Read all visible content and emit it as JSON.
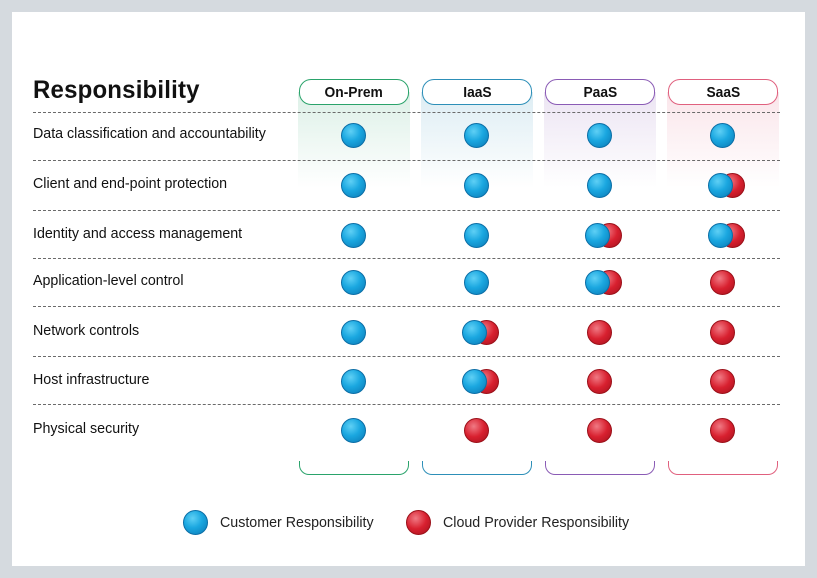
{
  "title": "Responsibility",
  "colors": {
    "customer": "#1aa7e0",
    "provider": "#d8202f",
    "onprem": "#2aa36b",
    "iaas": "#2d8fb8",
    "paas": "#8a5bb5",
    "saas": "#e0607e"
  },
  "columns": [
    {
      "key": "onprem",
      "label": "On-Prem"
    },
    {
      "key": "iaas",
      "label": "IaaS"
    },
    {
      "key": "paas",
      "label": "PaaS"
    },
    {
      "key": "saas",
      "label": "SaaS"
    }
  ],
  "rows": [
    {
      "label": "Data classification and accountability",
      "cells": [
        "customer",
        "customer",
        "customer",
        "customer"
      ]
    },
    {
      "label": "Client and end-point protection",
      "cells": [
        "customer",
        "customer",
        "customer",
        "shared"
      ]
    },
    {
      "label": "Identity and access management",
      "cells": [
        "customer",
        "customer",
        "shared",
        "shared"
      ]
    },
    {
      "label": "Application-level control",
      "cells": [
        "customer",
        "customer",
        "shared",
        "provider"
      ]
    },
    {
      "label": "Network controls",
      "cells": [
        "customer",
        "shared",
        "provider",
        "provider"
      ]
    },
    {
      "label": "Host infrastructure",
      "cells": [
        "customer",
        "shared",
        "provider",
        "provider"
      ]
    },
    {
      "label": "Physical security",
      "cells": [
        "customer",
        "provider",
        "provider",
        "provider"
      ]
    }
  ],
  "legend": {
    "customer": "Customer Responsibility",
    "provider": "Cloud Provider Responsibility"
  }
}
